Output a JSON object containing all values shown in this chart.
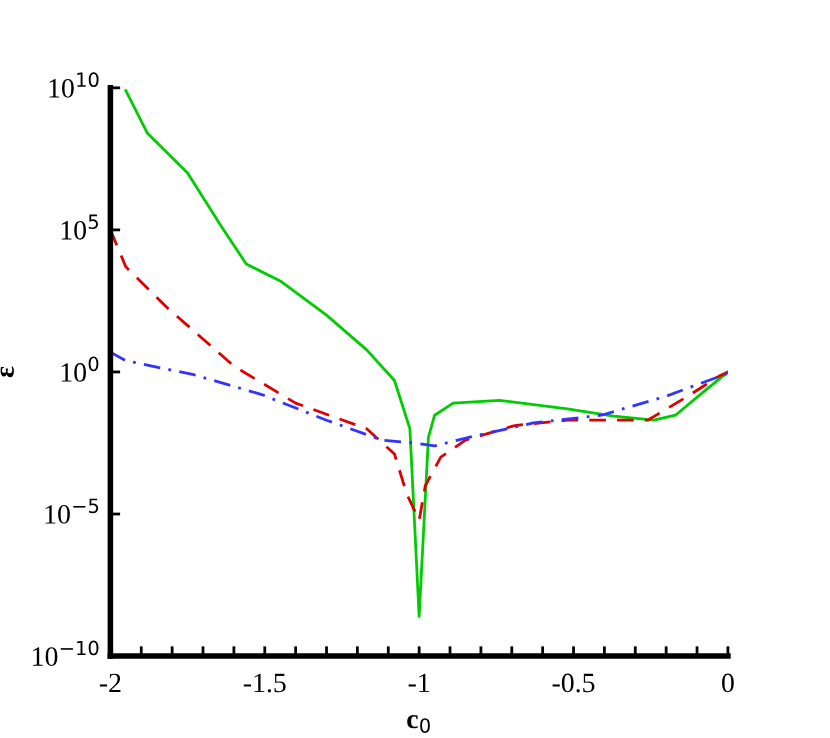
{
  "chart_data": {
    "type": "line",
    "xlabel": "c$_{0}$",
    "ylabel": "ε",
    "log": "y",
    "grid": false,
    "legend": false,
    "marker": "none",
    "xlim": [
      -2,
      0
    ],
    "ylim": [
      1e-10,
      10000000000.0
    ],
    "xticks": [
      {
        "value": -2,
        "label": "-2"
      },
      {
        "value": -1.9,
        "label": null
      },
      {
        "value": -1.8,
        "label": null
      },
      {
        "value": -1.7,
        "label": null
      },
      {
        "value": -1.6,
        "label": null
      },
      {
        "value": -1.5,
        "label": "-1.5"
      },
      {
        "value": -1.4,
        "label": null
      },
      {
        "value": -1.3,
        "label": null
      },
      {
        "value": -1.2,
        "label": null
      },
      {
        "value": -1.1,
        "label": null
      },
      {
        "value": -1,
        "label": "-1"
      },
      {
        "value": -0.9,
        "label": null
      },
      {
        "value": -0.8,
        "label": null
      },
      {
        "value": -0.7,
        "label": null
      },
      {
        "value": -0.6,
        "label": null
      },
      {
        "value": -0.5,
        "label": "-0.5"
      },
      {
        "value": -0.4,
        "label": null
      },
      {
        "value": -0.3,
        "label": null
      },
      {
        "value": -0.2,
        "label": null
      },
      {
        "value": -0.1,
        "label": null
      },
      {
        "value": 0,
        "label": "0"
      }
    ],
    "yticks": [
      {
        "value": 1e-10,
        "label": "10$^{−10}$"
      },
      {
        "value": 1e-05,
        "label": "10$^{−5}$"
      },
      {
        "value": 1,
        "label": "10$^{0}$"
      },
      {
        "value": 100000.0,
        "label": "10$^{5}$"
      },
      {
        "value": 10000000000.0,
        "label": "10$^{10}$"
      }
    ],
    "series": [
      {
        "color": "#00cc00",
        "line_style": "solid",
        "x": [
          -1.95,
          -1.88,
          -1.75,
          -1.64,
          -1.56,
          -1.45,
          -1.3,
          -1.17,
          -1.08,
          -1.03,
          -1.0,
          -0.97,
          -0.95,
          -0.89,
          -0.74,
          -0.52,
          -0.37,
          -0.24,
          -0.17,
          -0.09,
          0
        ],
        "values": [
          7900000000.0,
          250000000.0,
          10000000.0,
          130000.0,
          6300.0,
          1600.0,
          100,
          6,
          0.5,
          0.01,
          2.5e-09,
          0.005,
          0.03,
          0.08,
          0.1,
          0.05,
          0.028,
          0.02,
          0.03,
          0.16,
          1
        ]
      },
      {
        "color": "#dd0000",
        "line_style": "dashed",
        "x": [
          -2,
          -1.95,
          -1.82,
          -1.66,
          -1.6,
          -1.4,
          -1.17,
          -1.08,
          -1.04,
          -1.0,
          -0.98,
          -0.93,
          -0.85,
          -0.69,
          -0.52,
          -0.26,
          -0.13,
          -0.03,
          0
        ],
        "values": [
          100000.0,
          5000.0,
          200,
          6,
          1.6,
          0.08,
          0.01,
          0.0013,
          5e-05,
          6e-06,
          0.0001,
          0.001,
          0.004,
          0.013,
          0.02,
          0.02,
          0.14,
          0.7,
          1
        ]
      },
      {
        "color": "#3333ff",
        "line_style": "dashdot",
        "x": [
          -2,
          -1.95,
          -1.73,
          -1.51,
          -1.3,
          -1.12,
          -1.0,
          -0.95,
          -0.82,
          -0.63,
          -0.41,
          -0.2,
          0
        ],
        "values": [
          5,
          2.5,
          0.8,
          0.16,
          0.02,
          0.004,
          0.003,
          0.0025,
          0.0056,
          0.016,
          0.03,
          0.14,
          0.9
        ]
      }
    ]
  }
}
